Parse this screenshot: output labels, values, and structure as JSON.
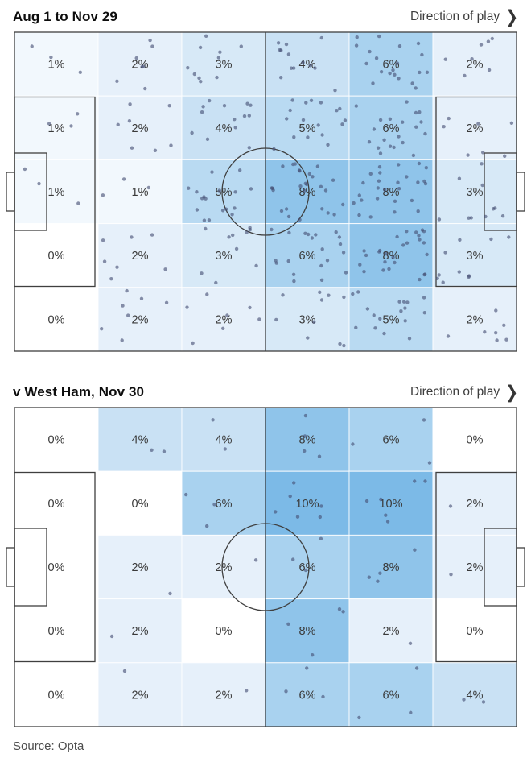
{
  "page": {
    "background": "#ffffff"
  },
  "source_label": "Source: Opta",
  "colors": {
    "scale": {
      "0": "#ffffff",
      "1": "#f2f8fd",
      "2": "#e6f0fa",
      "3": "#d7e9f7",
      "4": "#c9e1f4",
      "5": "#b9daf2",
      "6": "#a9d2ef",
      "8": "#8fc4ea",
      "10": "#7cbae7"
    },
    "dot": "#454f75",
    "line": "#3f3f3f",
    "zone_label": "#3a3a3a"
  },
  "chart_data": [
    {
      "type": "heatmap",
      "title": "Aug 1 to Nov 29",
      "direction_label": "Direction of play",
      "rows": 5,
      "cols": 6,
      "zone_percentages": [
        [
          1,
          2,
          3,
          4,
          6,
          2
        ],
        [
          1,
          2,
          4,
          5,
          6,
          2
        ],
        [
          1,
          1,
          5,
          8,
          8,
          3
        ],
        [
          0,
          2,
          3,
          6,
          8,
          3
        ],
        [
          0,
          2,
          2,
          3,
          5,
          2
        ]
      ],
      "approx_dots_per_percent": 3.3,
      "legend": "none",
      "grid": "6x5 pitch zones, halfway line left-to-right, direction of play rightward"
    },
    {
      "type": "heatmap",
      "title": "v West Ham, Nov 30",
      "direction_label": "Direction of play",
      "rows": 5,
      "cols": 6,
      "zone_percentages": [
        [
          0,
          4,
          4,
          8,
          6,
          0
        ],
        [
          0,
          0,
          6,
          10,
          10,
          2
        ],
        [
          0,
          2,
          2,
          6,
          8,
          2
        ],
        [
          0,
          2,
          0,
          8,
          2,
          0
        ],
        [
          0,
          2,
          2,
          6,
          6,
          4
        ]
      ],
      "approx_dots_per_percent": 0.55,
      "legend": "none",
      "grid": "6x5 pitch zones, halfway line left-to-right, direction of play rightward"
    }
  ]
}
